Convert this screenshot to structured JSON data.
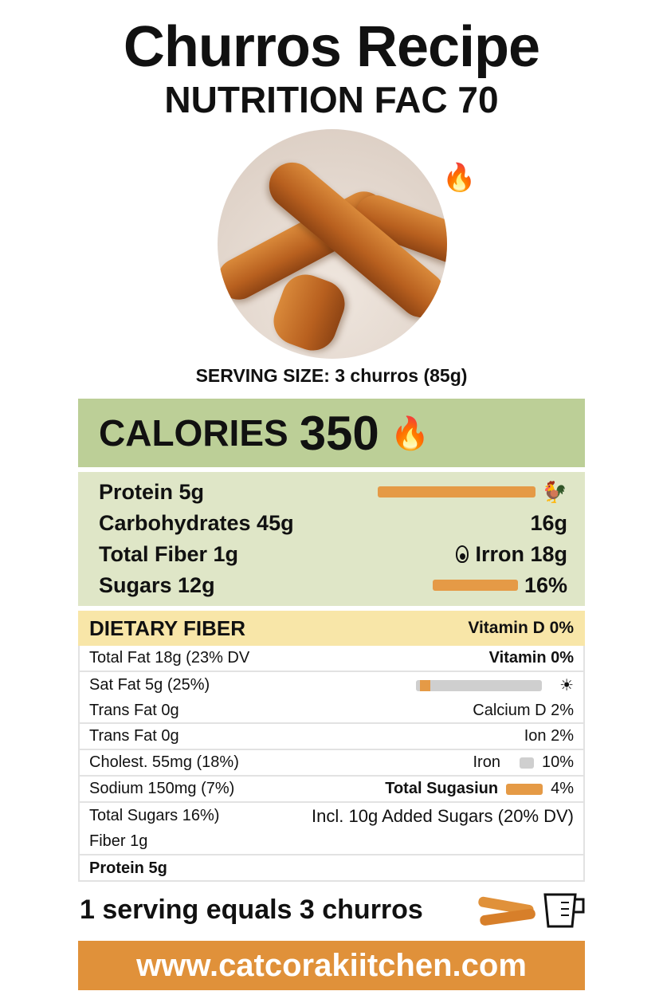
{
  "title": "Churros Recipe",
  "subtitle": "NUTRITION FAC 70",
  "serving_size": "SERVING SIZE: 3 churros (85g)",
  "calories": {
    "label": "CALORIES",
    "value": "350"
  },
  "macros": [
    {
      "left": "Protein 5g",
      "right": "",
      "bar_fill": 1.0,
      "icon": "chicken-icon"
    },
    {
      "left": "Carbohydrates 45g",
      "right": "16g"
    },
    {
      "left": "Total  Fiber 1g",
      "right": "Irron 18g",
      "icon": "avocado-icon"
    },
    {
      "left": "Sugars   12g",
      "right": "16%",
      "bar_fill": 1.0
    }
  ],
  "dietary": {
    "label": "DIETARY FIBER",
    "right": "Vitamin D 0%"
  },
  "table": [
    {
      "left": "Total Fat 18g (23% DV",
      "right": "Vitamin  0%"
    },
    {
      "left": "Sat Fat 5g (25%)",
      "right": "",
      "bar_fill": 0.08,
      "icon": "sun-icon"
    },
    {
      "left": "Trans Fat 0g",
      "right": "Calcium D 2%"
    },
    {
      "left": "Trans Fat 0g",
      "right": "Ion 2%"
    },
    {
      "left": "Cholest. 55mg (18%)",
      "right_label": "Iron",
      "right": "10%"
    },
    {
      "left": "Sodium 150mg (7%)",
      "right_label": "Total Sugasiun",
      "right": "4%"
    },
    {
      "left": "Total Sugars 16%)",
      "right": "Incl. 10g Added Sugars (20% DV)"
    },
    {
      "left": "Fiber 1g"
    },
    {
      "left": "Protein 5g"
    }
  ],
  "footer_note": "1 serving equals 3 churros",
  "url": "www.catcorakiitchen.com",
  "colors": {
    "accent": "#e0913a",
    "calories_bg": "#bccf97",
    "macros_bg": "#dfe6c7",
    "dietary_bg": "#f8e6a8"
  }
}
